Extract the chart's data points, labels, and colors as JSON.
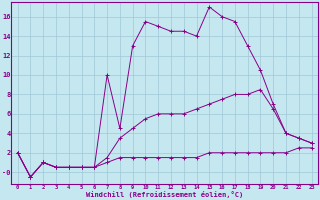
{
  "xlabel": "Windchill (Refroidissement éolien,°C)",
  "background_color": "#c5e8f0",
  "grid_color": "#a0c8d8",
  "line_color": "#880088",
  "x_ticks": [
    0,
    1,
    2,
    3,
    4,
    5,
    6,
    7,
    8,
    9,
    10,
    11,
    12,
    13,
    14,
    15,
    16,
    17,
    18,
    19,
    20,
    21,
    22,
    23
  ],
  "y_ticks": [
    0,
    2,
    4,
    6,
    8,
    10,
    12,
    14,
    16
  ],
  "y_tick_labels": [
    "-0",
    "2",
    "4",
    "6",
    "8",
    "10",
    "12",
    "14",
    "16"
  ],
  "ylim": [
    -1.2,
    17.5
  ],
  "xlim": [
    -0.5,
    23.5
  ],
  "series": {
    "line1_bottom": {
      "x": [
        0,
        1,
        2,
        3,
        4,
        5,
        6,
        7,
        8,
        9,
        10,
        11,
        12,
        13,
        14,
        15,
        16,
        17,
        18,
        19,
        20,
        21,
        22,
        23
      ],
      "y": [
        2,
        -0.5,
        1,
        0.5,
        0.5,
        0.5,
        0.5,
        1,
        1.5,
        1.5,
        1.5,
        1.5,
        1.5,
        1.5,
        1.5,
        2,
        2,
        2,
        2,
        2,
        2,
        2,
        2.5,
        2.5
      ]
    },
    "line2_mid": {
      "x": [
        0,
        1,
        2,
        3,
        4,
        5,
        6,
        7,
        8,
        9,
        10,
        11,
        12,
        13,
        14,
        15,
        16,
        17,
        18,
        19,
        20,
        21,
        22,
        23
      ],
      "y": [
        2,
        -0.5,
        1,
        0.5,
        0.5,
        0.5,
        0.5,
        1.5,
        3.5,
        4.5,
        5.5,
        6,
        6,
        6,
        6.5,
        7,
        7.5,
        8,
        8,
        8.5,
        6.5,
        4,
        3.5,
        3
      ]
    },
    "line3_top": {
      "x": [
        0,
        1,
        2,
        3,
        4,
        5,
        6,
        7,
        8,
        9,
        10,
        11,
        12,
        13,
        14,
        15,
        16,
        17,
        18,
        19,
        20,
        21,
        22,
        23
      ],
      "y": [
        2,
        -0.5,
        1,
        0.5,
        0.5,
        0.5,
        0.5,
        10,
        4.5,
        13,
        15.5,
        15,
        14.5,
        14.5,
        14,
        17,
        16,
        15.5,
        13,
        10.5,
        7,
        4,
        3.5,
        3
      ]
    }
  }
}
